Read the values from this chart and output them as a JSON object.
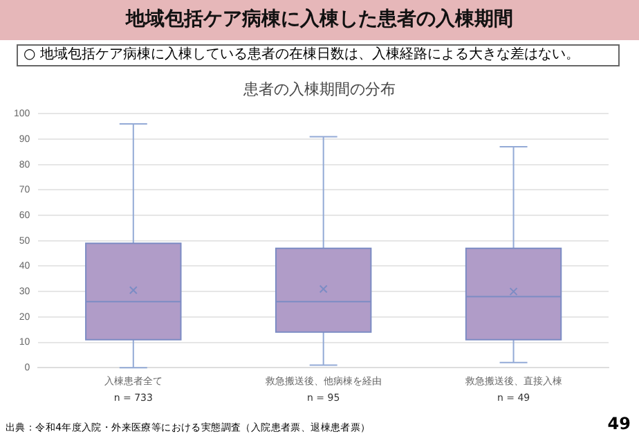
{
  "chart_data": {
    "type": "box",
    "title": "地域包括ケア病棟に入棟した患者の入棟期間",
    "subtitle": "○  地域包括ケア病棟に入棟している患者の在棟日数は、入棟経路による大きな差はない。",
    "categories": [
      "入棟患者全て",
      "救急搬送後、他病棟を経由",
      "救急搬送後、直接入棟"
    ],
    "boxes": [
      {
        "low": 0,
        "q1": 11,
        "median": 26,
        "q3": 49,
        "high": 96,
        "mean": 30.5
      },
      {
        "low": 1,
        "q1": 14,
        "median": 26,
        "q3": 47,
        "high": 91,
        "mean": 31
      },
      {
        "low": 2,
        "q1": 11,
        "median": 28,
        "q3": 47,
        "high": 87,
        "mean": 30
      }
    ],
    "color": "#b09cc8",
    "ylim": [
      0,
      100
    ],
    "yticks": [
      0,
      10,
      20,
      30,
      40,
      50,
      60,
      70,
      80,
      90,
      100
    ],
    "grid": "y",
    "legend": false,
    "annotations": [
      "患者の入棟期間の分布",
      "出典：令和4年度入院・外来医療等における実態調査（入院患者票、退棟患者票）",
      "49",
      "n = 733",
      "n = 95",
      "n = 49"
    ]
  }
}
